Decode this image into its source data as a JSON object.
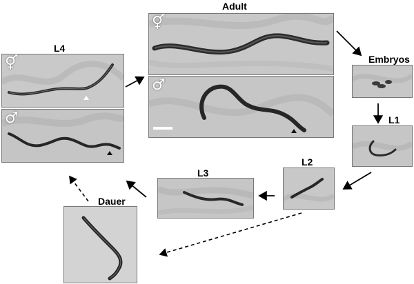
{
  "labels": {
    "adult": "Adult",
    "embryos": "Embryos",
    "l1": "L1",
    "l2": "L2",
    "l3": "L3",
    "l4": "L4",
    "dauer": "Dauer"
  },
  "sex_symbols": {
    "hermaphrodite": "⚥",
    "male": "♂"
  },
  "colors": {
    "panel_bg": "#cfcfcf",
    "worm": "#2a2a2a",
    "arrow": "#000000"
  },
  "icons": [
    "hermaphrodite-symbol",
    "male-symbol",
    "arrowhead-marker",
    "scale-bar"
  ]
}
